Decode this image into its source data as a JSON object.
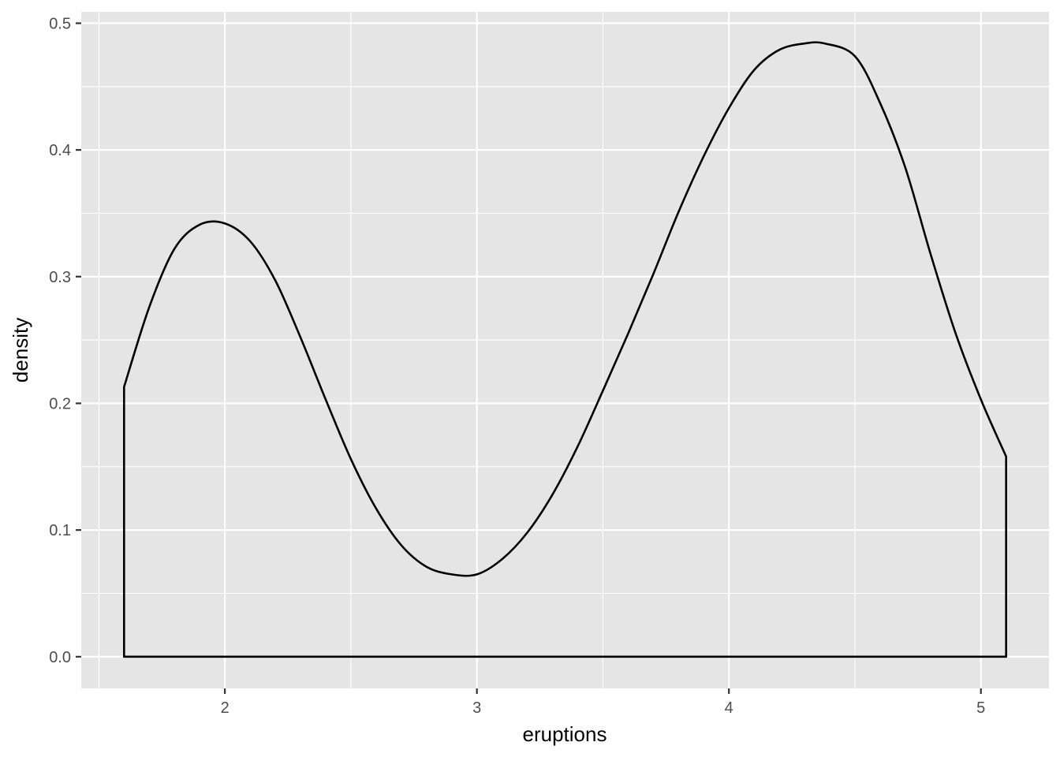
{
  "chart_data": {
    "type": "area",
    "title": "",
    "xlabel": "eruptions",
    "ylabel": "density",
    "xlim": [
      1.43,
      5.27
    ],
    "ylim": [
      -0.025,
      0.509
    ],
    "x_ticks": [
      2,
      3,
      4,
      5
    ],
    "x_tick_labels": [
      "2",
      "3",
      "4",
      "5"
    ],
    "x_minor_ticks": [
      1.5,
      2.5,
      3.5,
      4.5
    ],
    "y_ticks": [
      0,
      0.1,
      0.2,
      0.3,
      0.4,
      0.5
    ],
    "y_tick_labels": [
      "0.0",
      "0.1",
      "0.2",
      "0.3",
      "0.4",
      "0.5"
    ],
    "y_minor_ticks": [
      0.05,
      0.15,
      0.25,
      0.35,
      0.45
    ],
    "grid": true,
    "colors": {
      "panel": "#e5e5e5",
      "grid": "#ffffff",
      "line": "#000000",
      "fill": "none"
    },
    "series": [
      {
        "x": [
          1.6,
          1.7,
          1.8,
          1.9,
          2.0,
          2.1,
          2.2,
          2.3,
          2.4,
          2.5,
          2.6,
          2.7,
          2.8,
          2.9,
          3.0,
          3.1,
          3.2,
          3.3,
          3.4,
          3.5,
          3.6,
          3.7,
          3.8,
          3.9,
          4.0,
          4.1,
          4.2,
          4.3,
          4.38,
          4.5,
          4.6,
          4.7,
          4.8,
          4.9,
          5.0,
          5.1
        ],
        "y": [
          0.213,
          0.276,
          0.322,
          0.341,
          0.342,
          0.328,
          0.297,
          0.252,
          0.203,
          0.156,
          0.117,
          0.088,
          0.071,
          0.065,
          0.065,
          0.077,
          0.098,
          0.128,
          0.166,
          0.21,
          0.255,
          0.302,
          0.351,
          0.395,
          0.433,
          0.463,
          0.479,
          0.484,
          0.484,
          0.474,
          0.437,
          0.386,
          0.318,
          0.255,
          0.203,
          0.158
        ]
      }
    ]
  }
}
